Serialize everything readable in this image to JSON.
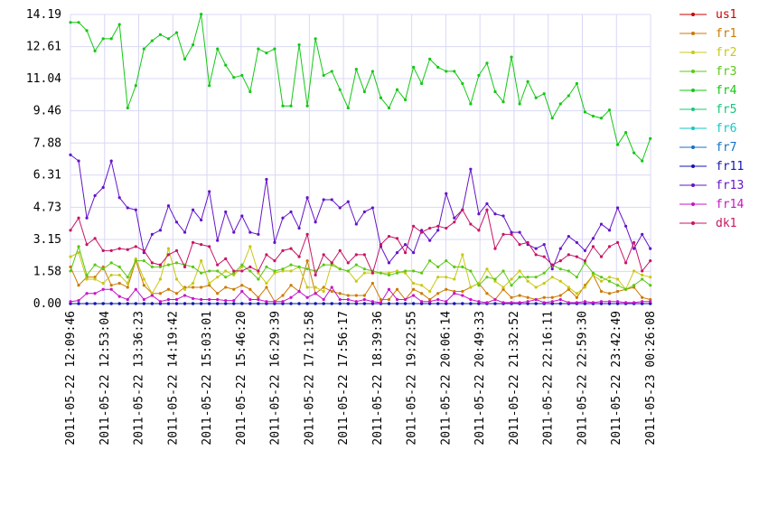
{
  "chart_data": {
    "type": "line",
    "x": [
      "2011-05-22 12:09:46",
      "2011-05-22 12:20:08",
      "2011-05-22 12:30:30",
      "2011-05-22 12:40:52",
      "2011-05-22 12:51:14",
      "2011-05-22 13:01:36",
      "2011-05-22 13:11:58",
      "2011-05-22 13:22:20",
      "2011-05-22 13:32:42",
      "2011-05-22 13:43:04",
      "2011-05-22 13:53:26",
      "2011-05-22 14:03:48",
      "2011-05-22 14:14:10",
      "2011-05-22 14:24:32",
      "2011-05-22 14:34:54",
      "2011-05-22 14:45:16",
      "2011-05-22 14:55:38",
      "2011-05-22 15:06:00",
      "2011-05-22 15:16:22",
      "2011-05-22 15:26:44",
      "2011-05-22 15:37:06",
      "2011-05-22 15:47:28",
      "2011-05-22 15:57:50",
      "2011-05-22 16:08:12",
      "2011-05-22 16:18:34",
      "2011-05-22 16:28:56",
      "2011-05-22 16:39:18",
      "2011-05-22 16:49:40",
      "2011-05-22 17:00:02",
      "2011-05-22 17:10:24",
      "2011-05-22 17:20:46",
      "2011-05-22 17:31:08",
      "2011-05-22 17:41:30",
      "2011-05-22 17:51:52",
      "2011-05-22 18:02:14",
      "2011-05-22 18:12:36",
      "2011-05-22 18:22:58",
      "2011-05-22 18:33:20",
      "2011-05-22 18:43:42",
      "2011-05-22 18:54:04",
      "2011-05-22 19:04:26",
      "2011-05-22 19:14:48",
      "2011-05-22 19:25:10",
      "2011-05-22 19:35:32",
      "2011-05-22 19:45:54",
      "2011-05-22 19:56:16",
      "2011-05-22 20:06:38",
      "2011-05-22 20:17:00",
      "2011-05-22 20:27:22",
      "2011-05-22 20:37:44",
      "2011-05-22 20:48:06",
      "2011-05-22 20:58:28",
      "2011-05-22 21:08:50",
      "2011-05-22 21:19:12",
      "2011-05-22 21:29:34",
      "2011-05-22 21:39:56",
      "2011-05-22 21:50:18",
      "2011-05-22 22:00:40",
      "2011-05-22 22:11:02",
      "2011-05-22 22:21:24",
      "2011-05-22 22:31:46",
      "2011-05-22 22:42:08",
      "2011-05-22 22:52:30",
      "2011-05-22 23:02:52",
      "2011-05-22 23:13:14",
      "2011-05-22 23:23:36",
      "2011-05-22 23:33:58",
      "2011-05-22 23:44:20",
      "2011-05-22 23:54:42",
      "2011-05-23 00:05:04",
      "2011-05-23 00:15:26",
      "2011-05-23 00:25:48"
    ],
    "xlim": [
      "2011-05-22 12:09:46",
      "2011-05-23 00:26:08"
    ],
    "xticks": [
      "2011-05-22 12:09:46",
      "2011-05-22 12:53:04",
      "2011-05-22 13:36:23",
      "2011-05-22 14:19:42",
      "2011-05-22 15:03:01",
      "2011-05-22 15:46:20",
      "2011-05-22 16:29:39",
      "2011-05-22 17:12:58",
      "2011-05-22 17:56:17",
      "2011-05-22 18:39:36",
      "2011-05-22 19:22:55",
      "2011-05-22 20:06:14",
      "2011-05-22 20:49:33",
      "2011-05-22 21:32:52",
      "2011-05-22 22:16:11",
      "2011-05-22 22:59:30",
      "2011-05-22 23:42:49",
      "2011-05-23 00:26:08"
    ],
    "ylim": [
      0,
      14.19
    ],
    "yticks": [
      {
        "value": 0,
        "label": "0.00"
      },
      1.58,
      3.15,
      4.73,
      6.31,
      7.88,
      9.46,
      11.04,
      12.61,
      14.19
    ],
    "grid": true,
    "series": [
      {
        "name": "us1",
        "color": "#cc0000",
        "values": [
          0,
          0,
          0,
          0,
          0,
          0,
          0,
          0,
          0,
          0,
          0,
          0,
          0,
          0,
          0,
          0,
          0,
          0,
          0,
          0,
          0,
          0,
          0,
          0,
          0,
          0,
          0,
          0,
          0,
          0,
          0,
          0,
          0,
          0,
          0,
          0,
          0,
          0,
          0,
          0,
          0,
          0,
          0,
          0,
          0,
          0,
          0,
          0,
          0,
          0,
          0,
          0,
          0,
          0,
          0,
          0,
          0,
          0,
          0,
          0,
          0,
          0,
          0,
          0,
          0,
          0,
          0,
          0,
          0,
          0,
          0,
          0
        ]
      },
      {
        "name": "fr1",
        "color": "#cc7a00",
        "values": [
          1.8,
          0.9,
          1.3,
          1.3,
          1.8,
          0.9,
          1.0,
          0.8,
          2.1,
          0.9,
          0.5,
          0.5,
          0.7,
          0.5,
          0.8,
          0.8,
          0.8,
          0.9,
          0.5,
          0.8,
          0.7,
          0.9,
          0.7,
          0.3,
          0.8,
          0.1,
          0.4,
          0.9,
          0.6,
          2.1,
          0.5,
          0.8,
          0.6,
          0.5,
          0.4,
          0.4,
          0.4,
          1.0,
          0.2,
          0.2,
          0.7,
          0.2,
          0.7,
          0.5,
          0.2,
          0.5,
          0.7,
          0.6,
          0.6,
          0.8,
          1.0,
          0.5,
          0.2,
          0.7,
          0.3,
          0.4,
          0.3,
          0.2,
          0.3,
          0.3,
          0.4,
          0.7,
          0.3,
          0.9,
          1.4,
          0.6,
          0.5,
          0.6,
          0.7,
          0.8,
          0.3,
          0.2
        ]
      },
      {
        "name": "fr2",
        "color": "#c8c814",
        "values": [
          2.3,
          2.5,
          1.2,
          1.2,
          1.0,
          1.4,
          1.4,
          1.0,
          2.2,
          1.2,
          0.5,
          1.2,
          2.7,
          1.2,
          0.7,
          1.0,
          2.1,
          1.0,
          1.3,
          1.6,
          1.4,
          1.8,
          2.8,
          1.5,
          1.0,
          1.5,
          1.6,
          1.6,
          1.8,
          0.8,
          0.8,
          0.6,
          2.0,
          1.7,
          1.6,
          1.1,
          1.5,
          1.5,
          1.5,
          1.5,
          1.6,
          1.5,
          1.0,
          0.9,
          0.6,
          1.3,
          1.3,
          1.2,
          2.4,
          0.8,
          1.0,
          1.7,
          1.1,
          0.8,
          1.2,
          1.6,
          1.1,
          0.8,
          1.0,
          1.3,
          1.1,
          0.8,
          0.5,
          0.8,
          1.4,
          1.1,
          1.3,
          1.2,
          0.7,
          1.6,
          1.4,
          1.3
        ]
      },
      {
        "name": "fr3",
        "color": "#5cc814",
        "values": [
          1.6,
          2.8,
          1.4,
          1.9,
          1.7,
          2.0,
          1.8,
          1.3,
          2.1,
          2.1,
          1.8,
          1.8,
          1.9,
          2.0,
          1.9,
          1.8,
          1.5,
          1.6,
          1.6,
          1.3,
          1.5,
          1.9,
          1.6,
          1.2,
          1.8,
          1.6,
          1.7,
          1.9,
          1.8,
          1.7,
          1.6,
          1.9,
          1.9,
          1.7,
          1.6,
          1.9,
          1.7,
          1.6,
          1.5,
          1.4,
          1.5,
          1.6,
          1.6,
          1.5,
          2.1,
          1.8,
          2.1,
          1.8,
          1.8,
          1.6,
          0.9,
          1.3,
          1.2,
          1.6,
          0.9,
          1.3,
          1.3,
          1.3,
          1.5,
          1.9,
          1.7,
          1.6,
          1.3,
          2.0,
          1.5,
          1.3,
          1.1,
          0.9,
          0.7,
          0.9,
          1.2,
          0.9
        ]
      },
      {
        "name": "fr4",
        "color": "#14c814",
        "values": [
          13.8,
          13.8,
          13.4,
          12.4,
          13,
          13,
          13.7,
          9.6,
          10.7,
          12.5,
          12.9,
          13.2,
          13,
          13.3,
          12,
          12.7,
          14.2,
          10.7,
          12.5,
          11.7,
          11.1,
          11.2,
          10.4,
          12.5,
          12.3,
          12.5,
          9.7,
          9.7,
          12.7,
          9.7,
          13,
          11.2,
          11.4,
          10.5,
          9.6,
          11.5,
          10.4,
          11.4,
          10.1,
          9.6,
          10.5,
          10,
          11.6,
          10.8,
          12,
          11.6,
          11.4,
          11.4,
          10.8,
          9.8,
          11.2,
          11.8,
          10.4,
          9.9,
          12.1,
          9.8,
          10.9,
          10.1,
          10.3,
          9.1,
          9.8,
          10.2,
          10.8,
          9.4,
          9.2,
          9.1,
          9.5,
          7.8,
          8.4,
          7.4,
          7,
          8.1
        ]
      },
      {
        "name": "fr5",
        "color": "#14c87a",
        "values": [
          0,
          0,
          0,
          0,
          0,
          0,
          0,
          0,
          0,
          0,
          0,
          0,
          0,
          0,
          0,
          0,
          0,
          0,
          0,
          0,
          0,
          0,
          0,
          0,
          0,
          0,
          0,
          0,
          0,
          0,
          0,
          0,
          0,
          0,
          0,
          0,
          0,
          0,
          0,
          0,
          0,
          0,
          0,
          0,
          0,
          0,
          0,
          0,
          0,
          0,
          0,
          0,
          0,
          0,
          0,
          0,
          0,
          0,
          0,
          0,
          0,
          0,
          0,
          0,
          0,
          0,
          0,
          0,
          0,
          0,
          0,
          0
        ]
      },
      {
        "name": "fr6",
        "color": "#14c8c8",
        "values": [
          0,
          0,
          0,
          0,
          0,
          0,
          0,
          0,
          0,
          0,
          0,
          0,
          0,
          0,
          0,
          0,
          0,
          0,
          0,
          0,
          0,
          0,
          0,
          0,
          0,
          0,
          0,
          0,
          0,
          0,
          0,
          0,
          0,
          0,
          0,
          0,
          0,
          0,
          0,
          0,
          0,
          0,
          0,
          0,
          0,
          0,
          0,
          0,
          0,
          0,
          0,
          0,
          0,
          0,
          0,
          0,
          0,
          0,
          0,
          0,
          0,
          0,
          0,
          0,
          0,
          0,
          0,
          0,
          0,
          0,
          0,
          0
        ]
      },
      {
        "name": "fr7",
        "color": "#1470c8",
        "values": [
          0,
          0,
          0,
          0,
          0,
          0,
          0,
          0,
          0,
          0,
          0,
          0,
          0,
          0,
          0,
          0,
          0,
          0,
          0,
          0,
          0,
          0,
          0,
          0,
          0,
          0,
          0,
          0,
          0,
          0,
          0,
          0,
          0,
          0,
          0,
          0,
          0,
          0,
          0,
          0,
          0,
          0,
          0,
          0,
          0,
          0,
          0,
          0,
          0,
          0,
          0,
          0,
          0,
          0,
          0,
          0,
          0,
          0,
          0,
          0,
          0,
          0,
          0,
          0,
          0,
          0,
          0,
          0,
          0,
          0,
          0,
          0
        ]
      },
      {
        "name": "fr11",
        "color": "#1414b4",
        "values": [
          0,
          0,
          0,
          0,
          0,
          0,
          0,
          0,
          0,
          0,
          0,
          0,
          0,
          0,
          0,
          0,
          0,
          0,
          0,
          0,
          0,
          0,
          0,
          0,
          0,
          0,
          0,
          0,
          0,
          0,
          0,
          0,
          0,
          0,
          0,
          0,
          0,
          0,
          0,
          0,
          0,
          0,
          0,
          0,
          0,
          0,
          0,
          0,
          0,
          0,
          0,
          0,
          0,
          0,
          0,
          0,
          0,
          0,
          0,
          0,
          0,
          0,
          0,
          0,
          0,
          0,
          0,
          0,
          0,
          0,
          0,
          0
        ]
      },
      {
        "name": "fr13",
        "color": "#6414c8",
        "values": [
          7.3,
          7.0,
          4.2,
          5.3,
          5.7,
          7.0,
          5.2,
          4.7,
          4.6,
          2.5,
          3.4,
          3.6,
          4.8,
          4.0,
          3.5,
          4.6,
          4.1,
          5.5,
          3.1,
          4.5,
          3.5,
          4.3,
          3.5,
          3.4,
          6.1,
          3.0,
          4.2,
          4.5,
          3.7,
          5.2,
          4.0,
          5.1,
          5.1,
          4.7,
          5.0,
          3.9,
          4.5,
          4.7,
          2.8,
          2.0,
          2.5,
          2.9,
          2.5,
          3.6,
          3.1,
          3.6,
          5.4,
          4.2,
          4.6,
          6.6,
          4.4,
          4.9,
          4.4,
          4.3,
          3.5,
          3.5,
          2.9,
          2.7,
          2.9,
          1.7,
          2.7,
          3.3,
          3.0,
          2.6,
          3.2,
          3.9,
          3.6,
          4.7,
          3.8,
          2.7,
          3.4,
          2.7
        ]
      },
      {
        "name": "fr14",
        "color": "#c814c8",
        "values": [
          0.1,
          0.15,
          0.5,
          0.5,
          0.7,
          0.7,
          0.35,
          0.2,
          0.7,
          0.2,
          0.4,
          0.1,
          0.2,
          0.2,
          0.4,
          0.25,
          0.2,
          0.2,
          0.2,
          0.15,
          0.15,
          0.6,
          0.2,
          0.2,
          0.1,
          0.1,
          0.1,
          0.3,
          0.6,
          0.3,
          0.5,
          0.2,
          0.8,
          0.2,
          0.2,
          0.1,
          0.2,
          0.1,
          0.05,
          0.7,
          0.2,
          0.2,
          0.4,
          0.1,
          0.1,
          0.2,
          0.1,
          0.5,
          0.4,
          0.2,
          0.1,
          0.05,
          0.2,
          0.05,
          0.05,
          0.05,
          0.1,
          0.2,
          0.05,
          0.1,
          0.2,
          0.05,
          0.05,
          0.1,
          0.05,
          0.1,
          0.1,
          0.1,
          0.05,
          0.05,
          0.1,
          0.1
        ]
      },
      {
        "name": "dk1",
        "color": "#c81464",
        "values": [
          3.6,
          4.2,
          2.9,
          3.2,
          2.6,
          2.6,
          2.7,
          2.65,
          2.8,
          2.6,
          2.0,
          1.9,
          2.4,
          2.6,
          1.8,
          3.0,
          2.9,
          2.8,
          1.9,
          2.2,
          1.6,
          1.6,
          1.8,
          1.6,
          2.4,
          2.1,
          2.6,
          2.7,
          2.3,
          3.4,
          1.4,
          2.4,
          2.0,
          2.6,
          2.0,
          2.4,
          2.4,
          1.5,
          2.9,
          3.3,
          3.2,
          2.5,
          3.8,
          3.5,
          3.7,
          3.8,
          3.7,
          4.0,
          4.6,
          3.9,
          3.6,
          4.6,
          2.7,
          3.4,
          3.4,
          2.9,
          3.0,
          2.4,
          2.3,
          1.9,
          2.1,
          2.4,
          2.3,
          2.1,
          2.8,
          2.3,
          2.8,
          3.0,
          2.0,
          3.0,
          1.6,
          2.1
        ]
      }
    ]
  }
}
